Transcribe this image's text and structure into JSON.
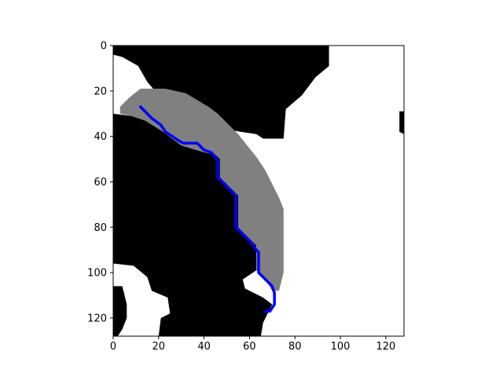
{
  "chart_data": {
    "type": "heatmap",
    "title": "",
    "xlabel": "",
    "ylabel": "",
    "xlim": [
      0,
      128
    ],
    "ylim": [
      128,
      0
    ],
    "x_ticks": [
      0,
      20,
      40,
      60,
      80,
      100,
      120
    ],
    "y_ticks": [
      0,
      20,
      40,
      60,
      80,
      100,
      120
    ],
    "x_tick_labels": [
      "0",
      "20",
      "40",
      "60",
      "80",
      "100",
      "120"
    ],
    "y_tick_labels": [
      "0",
      "20",
      "40",
      "60",
      "80",
      "100",
      "120"
    ],
    "colormap": "gray",
    "image_regions": {
      "black_regions": [
        {
          "name": "top-obstacle",
          "value": 0,
          "outline": [
            [
              0,
              0
            ],
            [
              95,
              0
            ],
            [
              95,
              9
            ],
            [
              89,
              14
            ],
            [
              83,
              22
            ],
            [
              76,
              28
            ],
            [
              75,
              41
            ],
            [
              66,
              41
            ],
            [
              63,
              39
            ],
            [
              56,
              38
            ],
            [
              45,
              36
            ],
            [
              33,
              33
            ],
            [
              25,
              28
            ],
            [
              21,
              23
            ],
            [
              15,
              16
            ],
            [
              11,
              9
            ],
            [
              4,
              5
            ],
            [
              0,
              4
            ]
          ]
        },
        {
          "name": "left-obstacle",
          "value": 0,
          "outline": [
            [
              0,
              30
            ],
            [
              8,
              31
            ],
            [
              14,
              33
            ],
            [
              22,
              38
            ],
            [
              30,
              44
            ],
            [
              40,
              47
            ],
            [
              45,
              48
            ],
            [
              47,
              50
            ],
            [
              47,
              58
            ],
            [
              55,
              66
            ],
            [
              55,
              80
            ],
            [
              63,
              88
            ],
            [
              63,
              99
            ],
            [
              57,
              103
            ],
            [
              58,
              107
            ],
            [
              66,
              111
            ],
            [
              70,
              114
            ],
            [
              68,
              118
            ],
            [
              66,
              122
            ],
            [
              65,
              128
            ],
            [
              20,
              128
            ],
            [
              21,
              120
            ],
            [
              25,
              118
            ],
            [
              24,
              111
            ],
            [
              17,
              108
            ],
            [
              15,
              102
            ],
            [
              9,
              97
            ],
            [
              0,
              96
            ]
          ]
        },
        {
          "name": "bottom-left-obstacle",
          "value": 0,
          "outline": [
            [
              0,
              106
            ],
            [
              4,
              106
            ],
            [
              5,
              110
            ],
            [
              6,
              114
            ],
            [
              6,
              120
            ],
            [
              4,
              125
            ],
            [
              2,
              128
            ],
            [
              0,
              128
            ]
          ]
        },
        {
          "name": "right-edge-mark",
          "value": 0,
          "outline": [
            [
              126,
              29
            ],
            [
              128,
              29
            ],
            [
              128,
              39
            ],
            [
              126,
              38
            ]
          ]
        }
      ],
      "gray_band": {
        "name": "gray-corridor",
        "value": 0.5,
        "outline": [
          [
            3,
            27
          ],
          [
            7,
            23
          ],
          [
            12,
            19
          ],
          [
            23,
            19
          ],
          [
            32,
            21
          ],
          [
            37,
            24
          ],
          [
            42,
            27
          ],
          [
            46,
            30
          ],
          [
            50,
            34
          ],
          [
            55,
            39
          ],
          [
            59,
            44
          ],
          [
            63,
            49
          ],
          [
            67,
            55
          ],
          [
            70,
            61
          ],
          [
            73,
            67
          ],
          [
            75,
            72
          ],
          [
            75,
            100
          ],
          [
            73,
            108
          ],
          [
            70,
            108
          ],
          [
            67,
            103
          ],
          [
            63,
            99
          ],
          [
            63,
            88
          ],
          [
            55,
            80
          ],
          [
            55,
            66
          ],
          [
            47,
            58
          ],
          [
            47,
            50
          ],
          [
            45,
            48
          ],
          [
            40,
            47
          ],
          [
            30,
            44
          ],
          [
            22,
            38
          ],
          [
            14,
            33
          ],
          [
            8,
            31
          ],
          [
            3,
            30
          ]
        ]
      }
    },
    "series": [
      {
        "color": "#0000ff",
        "x": [
          12,
          17,
          21,
          23,
          26,
          29,
          31,
          37,
          40,
          43,
          45,
          46,
          46,
          50,
          54,
          54,
          55,
          58,
          61,
          63,
          64,
          64,
          67,
          70,
          71,
          71,
          69,
          67
        ],
        "y": [
          27,
          32,
          35,
          38,
          40,
          42,
          43,
          43,
          46,
          47,
          49,
          51,
          58,
          62,
          66,
          80,
          81,
          84,
          87,
          90,
          91,
          100,
          103,
          106,
          109,
          114,
          117,
          117
        ]
      }
    ]
  }
}
